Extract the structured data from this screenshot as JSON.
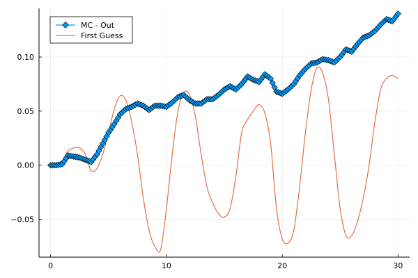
{
  "chart_data": {
    "type": "line",
    "title": "",
    "xlabel": "",
    "ylabel": "",
    "xlim": [
      -1,
      31
    ],
    "ylim": [
      -0.085,
      0.145
    ],
    "grid": true,
    "legend_position": "top-left",
    "x_ticks": [
      0,
      10,
      20,
      30
    ],
    "x_tick_labels": [
      "0",
      "10",
      "20",
      "30"
    ],
    "y_ticks": [
      -0.05,
      0.0,
      0.05,
      0.1
    ],
    "y_tick_labels": [
      "−0.05",
      "0.00",
      "0.05",
      "0.10"
    ],
    "series": [
      {
        "name": "MC - Out",
        "color": "#009af9",
        "marker": "diamond",
        "x": [
          0,
          0.5,
          1.0,
          1.5,
          2.0,
          2.5,
          3.0,
          3.5,
          4.0,
          4.5,
          5.0,
          5.5,
          6.0,
          6.5,
          7.0,
          7.5,
          8.0,
          8.5,
          9.0,
          9.5,
          10.0,
          10.5,
          11.0,
          11.5,
          12.0,
          12.5,
          13.0,
          13.5,
          14.0,
          14.5,
          15.0,
          15.5,
          16.0,
          16.5,
          17.0,
          17.5,
          18.0,
          18.5,
          19.0,
          19.5,
          20.0,
          20.5,
          21.0,
          21.5,
          22.0,
          22.5,
          23.0,
          23.5,
          24.0,
          24.5,
          25.0,
          25.5,
          26.0,
          26.5,
          27.0,
          27.5,
          28.0,
          28.5,
          29.0,
          29.5,
          30.0
        ],
        "values": [
          0.0,
          0.0,
          0.001,
          0.009,
          0.008,
          0.007,
          0.005,
          0.003,
          0.01,
          0.02,
          0.03,
          0.038,
          0.047,
          0.052,
          0.054,
          0.057,
          0.055,
          0.051,
          0.055,
          0.055,
          0.054,
          0.058,
          0.063,
          0.065,
          0.06,
          0.057,
          0.057,
          0.061,
          0.061,
          0.065,
          0.07,
          0.073,
          0.07,
          0.075,
          0.082,
          0.079,
          0.077,
          0.084,
          0.08,
          0.068,
          0.066,
          0.07,
          0.075,
          0.083,
          0.089,
          0.094,
          0.095,
          0.098,
          0.097,
          0.095,
          0.1,
          0.107,
          0.105,
          0.112,
          0.118,
          0.12,
          0.124,
          0.13,
          0.135,
          0.133,
          0.14
        ]
      },
      {
        "name": "First Guess",
        "color": "#e26f46",
        "marker": "none",
        "x": [
          0,
          0.5,
          1.0,
          1.5,
          2.0,
          2.5,
          3.0,
          3.5,
          4.0,
          4.5,
          5.0,
          5.5,
          6.0,
          6.5,
          7.0,
          7.5,
          8.0,
          8.5,
          9.0,
          9.5,
          10.0,
          10.5,
          11.0,
          11.5,
          12.0,
          12.5,
          13.0,
          13.5,
          14.0,
          14.5,
          15.0,
          15.5,
          16.0,
          16.5,
          17.0,
          17.5,
          18.0,
          18.5,
          19.0,
          19.5,
          20.0,
          20.5,
          21.0,
          21.5,
          22.0,
          22.5,
          23.0,
          23.5,
          24.0,
          24.5,
          25.0,
          25.5,
          26.0,
          26.5,
          27.0,
          27.5,
          28.0,
          28.5,
          29.0,
          29.5,
          30.0
        ],
        "values": [
          0.0,
          0.001,
          0.004,
          0.013,
          0.016,
          0.016,
          0.01,
          -0.005,
          -0.003,
          0.01,
          0.03,
          0.052,
          0.064,
          0.06,
          0.04,
          0.01,
          -0.03,
          -0.06,
          -0.075,
          -0.078,
          -0.04,
          0.01,
          0.05,
          0.067,
          0.065,
          0.045,
          0.01,
          -0.02,
          -0.035,
          -0.045,
          -0.048,
          -0.04,
          -0.01,
          0.03,
          0.042,
          0.05,
          0.056,
          0.048,
          0.02,
          -0.04,
          -0.068,
          -0.072,
          -0.06,
          -0.02,
          0.03,
          0.07,
          0.09,
          0.085,
          0.06,
          0.01,
          -0.04,
          -0.065,
          -0.065,
          -0.052,
          -0.03,
          0.0,
          0.04,
          0.07,
          0.08,
          0.083,
          0.08
        ]
      }
    ]
  }
}
